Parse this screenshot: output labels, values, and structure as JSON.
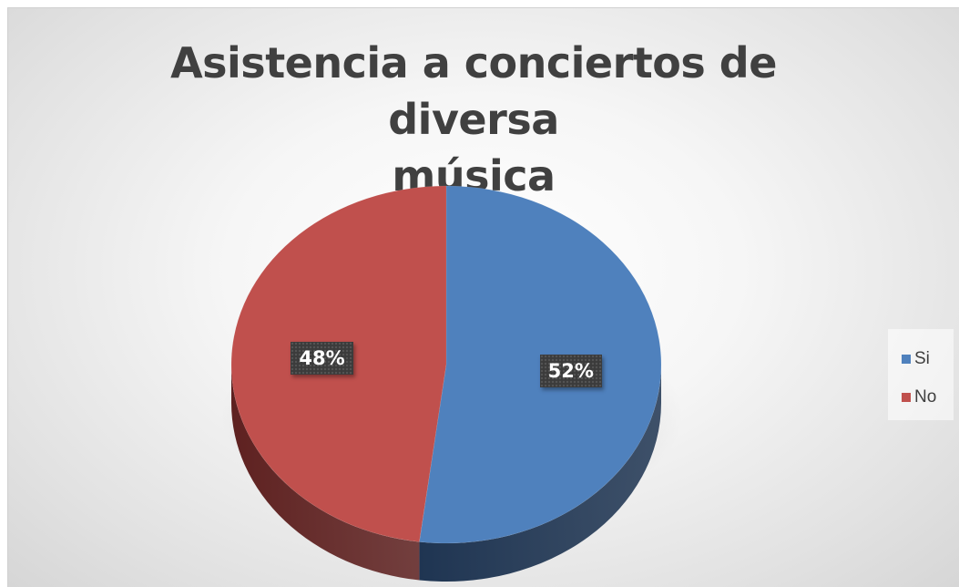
{
  "chart_data": {
    "type": "pie",
    "title": "Asistencia a conciertos de diversa música",
    "title_lines": [
      "Asistencia a conciertos de diversa",
      "música"
    ],
    "categories": [
      "Si",
      "No"
    ],
    "values": [
      52,
      48
    ],
    "data_labels": [
      "52%",
      "48%"
    ],
    "colors": [
      "#4f81bd",
      "#c0504d"
    ],
    "side_colors": [
      "#1f3552",
      "#5e2120"
    ],
    "legend": {
      "position": "right",
      "entries": [
        "Si",
        "No"
      ]
    },
    "style": "3d"
  }
}
